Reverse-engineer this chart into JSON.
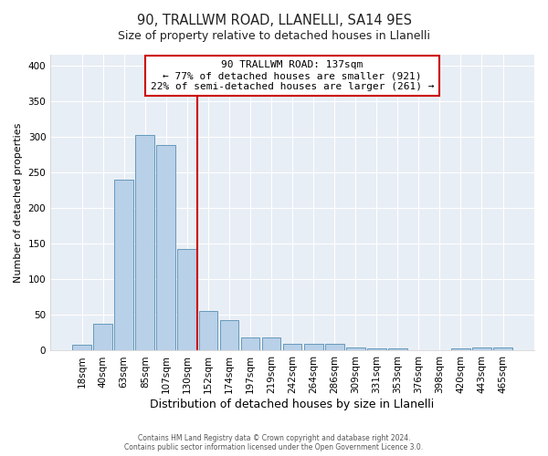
{
  "title": "90, TRALLWM ROAD, LLANELLI, SA14 9ES",
  "subtitle": "Size of property relative to detached houses in Llanelli",
  "xlabel": "Distribution of detached houses by size in Llanelli",
  "ylabel": "Number of detached properties",
  "bar_labels": [
    "18sqm",
    "40sqm",
    "63sqm",
    "85sqm",
    "107sqm",
    "130sqm",
    "152sqm",
    "174sqm",
    "197sqm",
    "219sqm",
    "242sqm",
    "264sqm",
    "286sqm",
    "309sqm",
    "331sqm",
    "353sqm",
    "376sqm",
    "398sqm",
    "420sqm",
    "443sqm",
    "465sqm"
  ],
  "bar_values": [
    8,
    38,
    240,
    303,
    288,
    143,
    55,
    43,
    18,
    19,
    9,
    10,
    10,
    5,
    3,
    3,
    1,
    0,
    3,
    4,
    4
  ],
  "bar_color": "#b8d0e8",
  "bar_edge_color": "#6699bb",
  "vline_x_index": 6,
  "vline_color": "#cc0000",
  "annotation_title": "90 TRALLWM ROAD: 137sqm",
  "annotation_line1": "← 77% of detached houses are smaller (921)",
  "annotation_line2": "22% of semi-detached houses are larger (261) →",
  "annotation_box_color": "#ffffff",
  "annotation_box_edge": "#cc0000",
  "ylim": [
    0,
    415
  ],
  "yticks": [
    0,
    50,
    100,
    150,
    200,
    250,
    300,
    350,
    400
  ],
  "fig_bg_color": "#ffffff",
  "plot_bg_color": "#e8eef5",
  "footer1": "Contains HM Land Registry data © Crown copyright and database right 2024.",
  "footer2": "Contains public sector information licensed under the Open Government Licence 3.0."
}
